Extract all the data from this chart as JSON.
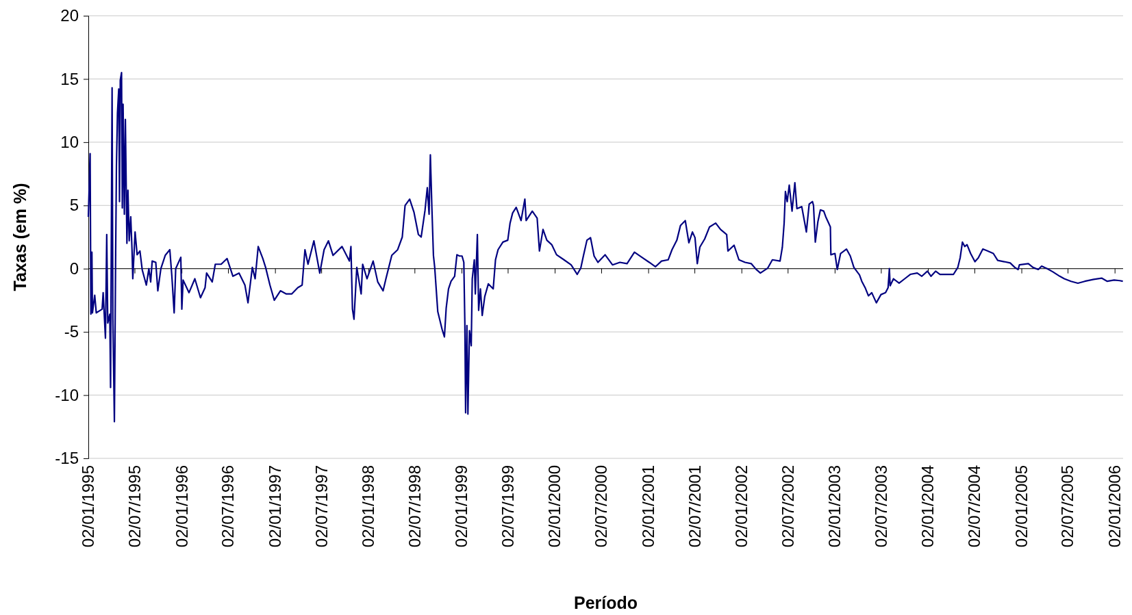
{
  "chart_data": {
    "type": "line",
    "xlabel": "Período",
    "ylabel": "Taxas (em %)",
    "xlim": [
      "1995-01-02",
      "2006-02-04"
    ],
    "ylim": [
      -15,
      20
    ],
    "yticks": [
      -15,
      -10,
      -5,
      0,
      5,
      10,
      15,
      20
    ],
    "xticks": [
      {
        "value": "1995-01-02",
        "label": "02/01/1995"
      },
      {
        "value": "1995-07-02",
        "label": "02/07/1995"
      },
      {
        "value": "1996-01-02",
        "label": "02/01/1996"
      },
      {
        "value": "1996-07-02",
        "label": "02/07/1996"
      },
      {
        "value": "1997-01-02",
        "label": "02/01/1997"
      },
      {
        "value": "1997-07-02",
        "label": "02/07/1997"
      },
      {
        "value": "1998-01-02",
        "label": "02/01/1998"
      },
      {
        "value": "1998-07-02",
        "label": "02/07/1998"
      },
      {
        "value": "1999-01-02",
        "label": "02/01/1999"
      },
      {
        "value": "1999-07-02",
        "label": "02/07/1999"
      },
      {
        "value": "2000-01-02",
        "label": "02/01/2000"
      },
      {
        "value": "2000-07-02",
        "label": "02/07/2000"
      },
      {
        "value": "2001-01-02",
        "label": "02/01/2001"
      },
      {
        "value": "2001-07-02",
        "label": "02/07/2001"
      },
      {
        "value": "2002-01-02",
        "label": "02/01/2002"
      },
      {
        "value": "2002-07-02",
        "label": "02/07/2002"
      },
      {
        "value": "2003-01-02",
        "label": "02/01/2003"
      },
      {
        "value": "2003-07-02",
        "label": "02/07/2003"
      },
      {
        "value": "2004-01-02",
        "label": "02/01/2004"
      },
      {
        "value": "2004-07-02",
        "label": "02/07/2004"
      },
      {
        "value": "2005-01-02",
        "label": "02/01/2005"
      },
      {
        "value": "2005-07-02",
        "label": "02/07/2005"
      },
      {
        "value": "2006-01-02",
        "label": "02/01/2006"
      }
    ],
    "grid": "y",
    "marker": "none",
    "line_style": "solid",
    "x": [
      "1995-01-02",
      "1995-01-09",
      "1995-01-12",
      "1995-01-16",
      "1995-01-18",
      "1995-01-27",
      "1995-02-02",
      "1995-02-25",
      "1995-03-01",
      "1995-03-10",
      "1995-03-15",
      "1995-03-19",
      "1995-03-27",
      "1995-03-30",
      "1995-04-05",
      "1995-04-08",
      "1995-04-14",
      "1995-04-19",
      "1995-04-22",
      "1995-04-26",
      "1995-05-01",
      "1995-05-04",
      "1995-05-07",
      "1995-05-12",
      "1995-05-15",
      "1995-05-18",
      "1995-05-23",
      "1995-05-27",
      "1995-06-02",
      "1995-06-06",
      "1995-06-11",
      "1995-06-17",
      "1995-06-22",
      "1995-06-25",
      "1995-07-04",
      "1995-07-12",
      "1995-07-23",
      "1995-08-01",
      "1995-08-17",
      "1995-08-27",
      "1995-09-03",
      "1995-09-09",
      "1995-09-23",
      "1995-10-01",
      "1995-10-13",
      "1995-10-30",
      "1995-11-17",
      "1995-11-25",
      "1995-12-04",
      "1995-12-10",
      "1995-12-30",
      "1996-01-03",
      "1996-01-08",
      "1996-01-31",
      "1996-02-23",
      "1996-03-16",
      "1996-04-03",
      "1996-04-09",
      "1996-05-01",
      "1996-05-13",
      "1996-06-05",
      "1996-06-28",
      "1996-07-21",
      "1996-08-14",
      "1996-09-06",
      "1996-09-18",
      "1996-10-05",
      "1996-10-16",
      "1996-10-28",
      "1996-11-15",
      "1996-11-26",
      "1996-12-13",
      "1996-12-30",
      "1997-01-23",
      "1997-02-15",
      "1997-03-08",
      "1997-04-01",
      "1997-04-18",
      "1997-04-29",
      "1997-05-11",
      "1997-06-03",
      "1997-06-26",
      "1997-07-13",
      "1997-07-30",
      "1997-08-17",
      "1997-09-21",
      "1997-10-20",
      "1997-10-26",
      "1997-11-01",
      "1997-11-07",
      "1997-11-18",
      "1997-12-05",
      "1997-12-11",
      "1997-12-28",
      "1998-01-21",
      "1998-02-08",
      "1998-03-01",
      "1998-03-12",
      "1998-04-04",
      "1998-04-27",
      "1998-05-15",
      "1998-05-26",
      "1998-06-13",
      "1998-06-30",
      "1998-07-17",
      "1998-07-28",
      "1998-08-12",
      "1998-08-21",
      "1998-08-28",
      "1998-09-02",
      "1998-09-08",
      "1998-09-14",
      "1998-09-19",
      "1998-10-01",
      "1998-10-18",
      "1998-10-27",
      "1998-11-03",
      "1998-11-12",
      "1998-11-22",
      "1998-12-06",
      "1998-12-15",
      "1998-12-25",
      "1999-01-04",
      "1999-01-11",
      "1999-01-15",
      "1999-01-18",
      "1999-01-23",
      "1999-01-27",
      "1999-02-02",
      "1999-02-09",
      "1999-02-13",
      "1999-02-21",
      "1999-02-25",
      "1999-03-05",
      "1999-03-10",
      "1999-03-17",
      "1999-03-24",
      "1999-04-03",
      "1999-04-17",
      "1999-05-06",
      "1999-05-15",
      "1999-05-25",
      "1999-06-13",
      "1999-07-02",
      "1999-07-11",
      "1999-07-21",
      "1999-08-04",
      "1999-08-23",
      "1999-09-07",
      "1999-09-12",
      "1999-10-06",
      "1999-10-25",
      "1999-11-03",
      "1999-11-17",
      "1999-12-02",
      "1999-12-21",
      "2000-01-09",
      "2000-02-07",
      "2000-03-06",
      "2000-03-30",
      "2000-04-13",
      "2000-04-23",
      "2000-05-07",
      "2000-05-21",
      "2000-06-04",
      "2000-06-19",
      "2000-07-17",
      "2000-08-15",
      "2000-09-13",
      "2000-10-11",
      "2000-11-09",
      "2000-12-08",
      "2001-01-06",
      "2001-01-30",
      "2001-02-23",
      "2001-03-21",
      "2001-04-05",
      "2001-04-24",
      "2001-05-08",
      "2001-05-27",
      "2001-06-10",
      "2001-06-24",
      "2001-07-04",
      "2001-07-13",
      "2001-07-23",
      "2001-08-11",
      "2001-08-30",
      "2001-09-23",
      "2001-10-12",
      "2001-11-05",
      "2001-11-10",
      "2001-12-04",
      "2001-12-23",
      "2002-01-16",
      "2002-02-09",
      "2002-02-28",
      "2002-03-17",
      "2002-04-15",
      "2002-05-03",
      "2002-06-02",
      "2002-06-11",
      "2002-06-18",
      "2002-06-23",
      "2002-06-30",
      "2002-07-08",
      "2002-07-19",
      "2002-07-30",
      "2002-08-07",
      "2002-08-26",
      "2002-09-05",
      "2002-09-13",
      "2002-09-24",
      "2002-10-07",
      "2002-10-11",
      "2002-10-18",
      "2002-10-28",
      "2002-11-07",
      "2002-11-20",
      "2002-11-28",
      "2002-12-07",
      "2002-12-16",
      "2002-12-18",
      "2003-01-03",
      "2003-01-12",
      "2003-01-25",
      "2003-02-17",
      "2003-03-04",
      "2003-03-18",
      "2003-04-09",
      "2003-04-18",
      "2003-05-01",
      "2003-05-14",
      "2003-05-27",
      "2003-06-14",
      "2003-07-02",
      "2003-07-20",
      "2003-07-30",
      "2003-08-04",
      "2003-08-07",
      "2003-08-20",
      "2003-09-11",
      "2003-10-03",
      "2003-10-25",
      "2003-11-21",
      "2003-12-09",
      "2003-12-31",
      "2004-01-14",
      "2004-02-01",
      "2004-02-18",
      "2004-03-15",
      "2004-04-11",
      "2004-04-28",
      "2004-05-07",
      "2004-05-16",
      "2004-05-25",
      "2004-06-03",
      "2004-06-17",
      "2004-07-04",
      "2004-07-17",
      "2004-08-04",
      "2004-08-22",
      "2004-09-14",
      "2004-10-01",
      "2004-10-27",
      "2004-11-19",
      "2004-12-07",
      "2004-12-20",
      "2004-12-25",
      "2005-01-29",
      "2005-02-16",
      "2005-03-09",
      "2005-03-22",
      "2005-04-13",
      "2005-05-05",
      "2005-06-01",
      "2005-06-19",
      "2005-07-15",
      "2005-08-11",
      "2005-09-07",
      "2005-10-12",
      "2005-11-12",
      "2005-12-04",
      "2005-12-31",
      "2006-01-22",
      "2006-02-03"
    ],
    "series": [
      {
        "color": "#000080",
        "values": [
          4.1,
          9.1,
          -3.6,
          1.3,
          -3.5,
          -2.1,
          -3.5,
          -3.2,
          -1.9,
          -5.5,
          2.7,
          -4.3,
          -3.6,
          -9.4,
          14.3,
          -3.9,
          -12.1,
          1.3,
          8.1,
          12.3,
          14.2,
          5.3,
          14.9,
          15.5,
          4.8,
          13.0,
          4.3,
          11.8,
          2.0,
          6.2,
          2.2,
          4.1,
          1.5,
          -0.8,
          2.9,
          1.1,
          1.4,
          -0.1,
          -1.3,
          0.0,
          -1.05,
          0.6,
          0.5,
          -1.75,
          0.0,
          1.05,
          1.5,
          -0.6,
          -3.5,
          0.0,
          0.9,
          -3.2,
          -0.9,
          -1.9,
          -0.8,
          -2.3,
          -1.5,
          -0.35,
          -1.05,
          0.35,
          0.35,
          0.8,
          -0.6,
          -0.35,
          -1.3,
          -2.7,
          0.1,
          -0.8,
          1.75,
          0.8,
          0.1,
          -1.3,
          -2.5,
          -1.75,
          -2.0,
          -2.0,
          -1.5,
          -1.3,
          1.5,
          0.35,
          2.2,
          -0.35,
          1.5,
          2.2,
          1.05,
          1.75,
          0.6,
          1.75,
          -3.2,
          -4.0,
          0.1,
          -2.0,
          0.35,
          -0.8,
          0.6,
          -1.05,
          -1.75,
          -0.8,
          1.05,
          1.5,
          2.5,
          5.0,
          5.5,
          4.45,
          2.7,
          2.5,
          4.6,
          6.4,
          4.3,
          9.0,
          4.8,
          1.05,
          0.1,
          -3.4,
          -4.8,
          -5.4,
          -3.1,
          -1.6,
          -1.0,
          -0.6,
          1.1,
          1.0,
          1.0,
          0.5,
          -4.3,
          -11.4,
          -4.5,
          -11.5,
          -4.9,
          -6.1,
          -0.8,
          0.7,
          -2.0,
          2.7,
          -3.3,
          -1.6,
          -3.7,
          -2.2,
          -1.2,
          -1.6,
          0.7,
          1.5,
          2.1,
          2.25,
          3.6,
          4.4,
          4.85,
          3.8,
          5.5,
          3.8,
          4.55,
          4.0,
          1.4,
          3.1,
          2.25,
          1.9,
          1.1,
          0.7,
          0.3,
          -0.45,
          0.05,
          1.0,
          2.25,
          2.45,
          1.0,
          0.5,
          1.1,
          0.3,
          0.5,
          0.4,
          1.3,
          0.9,
          0.5,
          0.15,
          0.6,
          0.7,
          1.5,
          2.25,
          3.4,
          3.8,
          2.05,
          2.9,
          2.45,
          0.4,
          1.7,
          2.35,
          3.3,
          3.6,
          3.1,
          2.7,
          1.4,
          1.85,
          0.7,
          0.5,
          0.4,
          -0.05,
          -0.35,
          0.05,
          0.7,
          0.6,
          1.7,
          3.6,
          6.1,
          5.3,
          6.6,
          4.55,
          6.8,
          4.75,
          4.9,
          3.8,
          2.9,
          5.1,
          5.3,
          5.0,
          2.1,
          3.7,
          4.65,
          4.55,
          4.1,
          3.7,
          3.3,
          1.1,
          1.2,
          -0.07,
          1.2,
          1.55,
          1.0,
          0.1,
          -0.5,
          -1.0,
          -1.5,
          -2.15,
          -1.9,
          -2.7,
          -2.05,
          -1.9,
          -1.5,
          0.0,
          -1.35,
          -0.8,
          -1.15,
          -0.8,
          -0.45,
          -0.35,
          -0.6,
          -0.2,
          -0.6,
          -0.2,
          -0.45,
          -0.45,
          -0.45,
          0.1,
          0.85,
          2.1,
          1.75,
          1.9,
          1.2,
          0.55,
          0.85,
          1.55,
          1.4,
          1.2,
          0.65,
          0.55,
          0.45,
          0.1,
          -0.07,
          0.3,
          0.4,
          0.1,
          -0.07,
          0.2,
          0.0,
          -0.25,
          -0.6,
          -0.8,
          -1.0,
          -1.15,
          -1.0,
          -0.85,
          -0.75,
          -1.0,
          -0.9,
          -0.95,
          -1.0
        ]
      }
    ]
  }
}
